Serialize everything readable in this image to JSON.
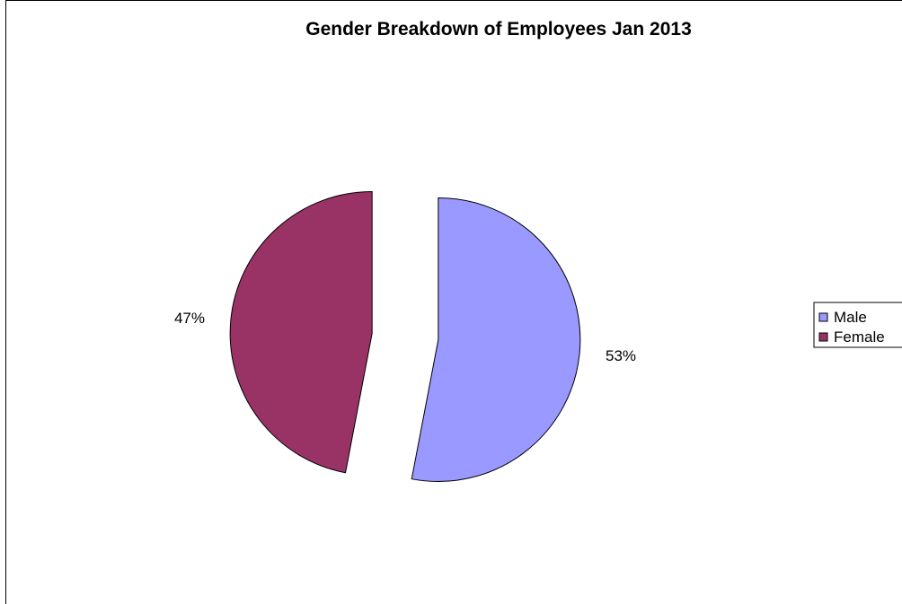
{
  "chart_data": {
    "type": "pie",
    "title": "Gender Breakdown of Employees Jan 2013",
    "categories": [
      "Male",
      "Female"
    ],
    "values": [
      53,
      47
    ],
    "labels": [
      "53%",
      "47%"
    ],
    "colors": [
      "#9999ff",
      "#993366"
    ],
    "exploded": true,
    "legend_position": "right"
  }
}
